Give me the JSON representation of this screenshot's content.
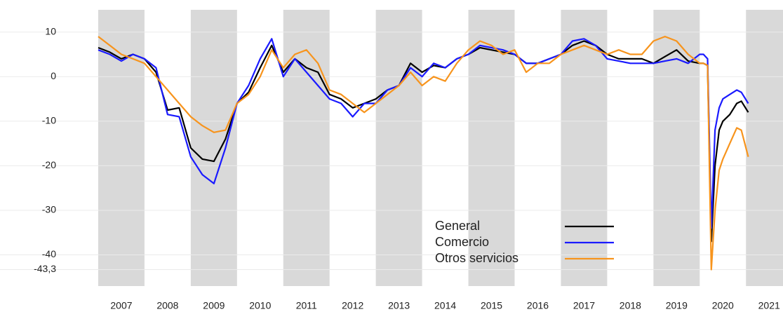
{
  "chart_data": {
    "type": "line",
    "x": [
      2007,
      2007.25,
      2007.5,
      2007.75,
      2008,
      2008.25,
      2008.5,
      2008.75,
      2009,
      2009.25,
      2009.5,
      2009.75,
      2010,
      2010.25,
      2010.5,
      2010.75,
      2011,
      2011.25,
      2011.5,
      2011.75,
      2012,
      2012.25,
      2012.5,
      2012.75,
      2013,
      2013.25,
      2013.5,
      2013.75,
      2014,
      2014.25,
      2014.5,
      2014.75,
      2015,
      2015.25,
      2015.5,
      2015.75,
      2016,
      2016.25,
      2016.5,
      2016.75,
      2017,
      2017.25,
      2017.5,
      2017.75,
      2018,
      2018.25,
      2018.5,
      2018.75,
      2019,
      2019.25,
      2019.5,
      2019.75,
      2020,
      2020.08,
      2020.17,
      2020.25,
      2020.33,
      2020.42,
      2020.5,
      2020.65,
      2020.8,
      2020.9,
      2021.05
    ],
    "series": [
      {
        "name": "General",
        "color": "#000000",
        "values": [
          6.5,
          5.5,
          4,
          5,
          4,
          1,
          -7.5,
          -7,
          -16,
          -18.5,
          -19,
          -14,
          -6,
          -3.5,
          2,
          7,
          1,
          4,
          2,
          1,
          -4,
          -5,
          -7,
          -6,
          -5,
          -3,
          -2,
          3,
          1,
          2.5,
          2,
          4,
          5,
          6.5,
          6,
          5.5,
          5,
          3,
          3,
          4,
          5,
          7,
          8,
          7,
          5,
          4,
          4,
          4,
          3,
          4.5,
          6,
          3.5,
          3,
          3,
          2.5,
          -37,
          -20,
          -12,
          -10,
          -8.5,
          -6,
          -5.5,
          -8
        ]
      },
      {
        "name": "Comercio",
        "color": "#1a1aff",
        "values": [
          6,
          5,
          3.5,
          5,
          4,
          2,
          -8.5,
          -9,
          -18,
          -22,
          -24,
          -16,
          -6,
          -2,
          4,
          8.5,
          0,
          4,
          1,
          -2,
          -5,
          -6,
          -9,
          -6,
          -6,
          -3,
          -2,
          2,
          0,
          3,
          2,
          4,
          5,
          7,
          6.5,
          6,
          5,
          3,
          3,
          4,
          5,
          8,
          8.5,
          7,
          4,
          3.5,
          3,
          3,
          3,
          3.5,
          4,
          3,
          5,
          5,
          4,
          -34,
          -12,
          -7,
          -5,
          -4,
          -3,
          -3.5,
          -6
        ]
      },
      {
        "name": "Otros servicios",
        "color": "#f7941d",
        "values": [
          9,
          7,
          5,
          4,
          3,
          0,
          -3,
          -6,
          -9,
          -11,
          -12.5,
          -12,
          -6,
          -4,
          0,
          6,
          2,
          5,
          6,
          3,
          -3,
          -4,
          -6,
          -8,
          -6,
          -4,
          -2,
          1,
          -2,
          0,
          -1,
          3,
          6,
          8,
          7,
          5,
          6,
          1,
          3,
          3,
          5,
          6,
          7,
          6,
          5,
          6,
          5,
          5,
          8,
          9,
          8,
          5,
          3,
          3,
          2.5,
          -43.3,
          -30,
          -21,
          -18.5,
          -15,
          -11.5,
          -12,
          -18
        ]
      }
    ],
    "xlim": [
      2007,
      2021.8
    ],
    "xticks": [
      {
        "value": 2007.5,
        "label": "2007"
      },
      {
        "value": 2008.5,
        "label": "2008"
      },
      {
        "value": 2009.5,
        "label": "2009"
      },
      {
        "value": 2010.5,
        "label": "2010"
      },
      {
        "value": 2011.5,
        "label": "2011"
      },
      {
        "value": 2012.5,
        "label": "2012"
      },
      {
        "value": 2013.5,
        "label": "2013"
      },
      {
        "value": 2014.5,
        "label": "2014"
      },
      {
        "value": 2015.5,
        "label": "2015"
      },
      {
        "value": 2016.5,
        "label": "2016"
      },
      {
        "value": 2017.5,
        "label": "2017"
      },
      {
        "value": 2018.5,
        "label": "2018"
      },
      {
        "value": 2019.5,
        "label": "2019"
      },
      {
        "value": 2020.5,
        "label": "2020"
      },
      {
        "value": 2021.5,
        "label": "2021"
      }
    ],
    "ylim": [
      -47,
      15
    ],
    "yticks": [
      10,
      0,
      -10,
      -20,
      -30,
      -40,
      {
        "value": -43.3,
        "label": "-43,3"
      }
    ],
    "grid": true,
    "legend": "bottom"
  }
}
